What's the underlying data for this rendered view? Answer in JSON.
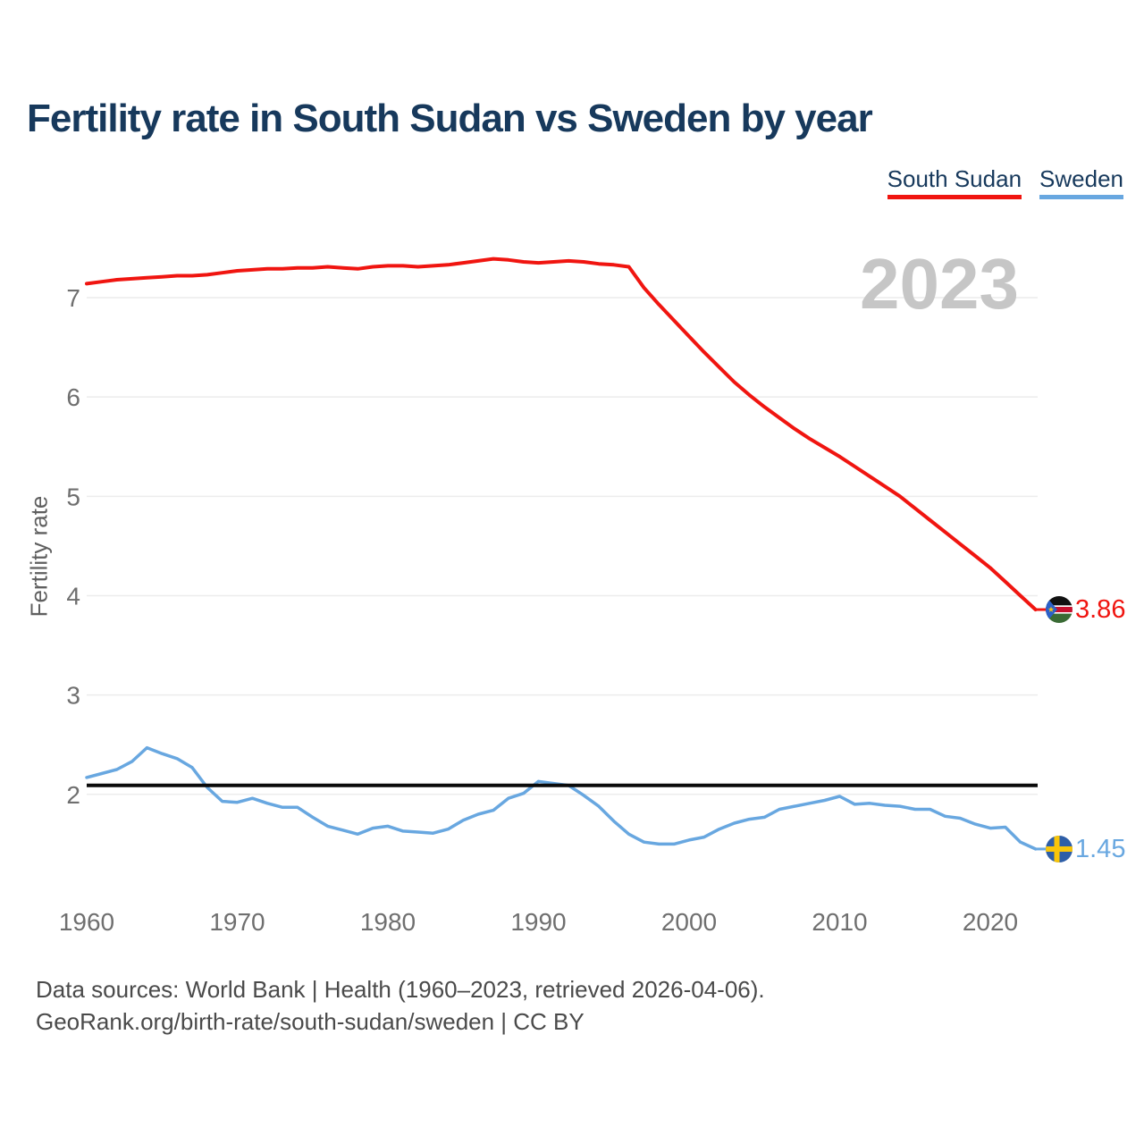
{
  "header": {
    "title": "Fertility rate in South Sudan vs Sweden by year"
  },
  "legend": {
    "items": [
      {
        "label": "South Sudan",
        "color": "#f01510"
      },
      {
        "label": "Sweden",
        "color": "#68a7e0"
      }
    ]
  },
  "chart": {
    "watermark": "2023",
    "y_axis_label": "Fertility rate"
  },
  "footer": {
    "line1": "Data sources: World Bank | Health (1960–2023, retrieved 2026-04-06).",
    "line2": "GeoRank.org/birth-rate/south-sudan/sweden | CC BY"
  },
  "chart_data": {
    "type": "line",
    "title": "Fertility rate in South Sudan vs Sweden by year",
    "xlabel": "",
    "ylabel": "Fertility rate",
    "grid": "horizontal",
    "legend_position": "top-right",
    "xlim": [
      1960,
      2023
    ],
    "ylim": [
      1.2,
      7.6
    ],
    "xticks": [
      1960,
      1970,
      1980,
      1990,
      2000,
      2010,
      2020
    ],
    "yticks": [
      2,
      3,
      4,
      5,
      6,
      7
    ],
    "reference_line": 2.09,
    "x": [
      1960,
      1961,
      1962,
      1963,
      1964,
      1965,
      1966,
      1967,
      1968,
      1969,
      1970,
      1971,
      1972,
      1973,
      1974,
      1975,
      1976,
      1977,
      1978,
      1979,
      1980,
      1981,
      1982,
      1983,
      1984,
      1985,
      1986,
      1987,
      1988,
      1989,
      1990,
      1991,
      1992,
      1993,
      1994,
      1995,
      1996,
      1997,
      1998,
      1999,
      2000,
      2001,
      2002,
      2003,
      2004,
      2005,
      2006,
      2007,
      2008,
      2009,
      2010,
      2011,
      2012,
      2013,
      2014,
      2015,
      2016,
      2017,
      2018,
      2019,
      2020,
      2021,
      2022,
      2023
    ],
    "series": [
      {
        "name": "South Sudan",
        "color": "#f01510",
        "end_label": "3.86",
        "values": [
          7.14,
          7.16,
          7.18,
          7.19,
          7.2,
          7.21,
          7.22,
          7.22,
          7.23,
          7.25,
          7.27,
          7.28,
          7.29,
          7.29,
          7.3,
          7.3,
          7.31,
          7.3,
          7.29,
          7.31,
          7.32,
          7.32,
          7.31,
          7.32,
          7.33,
          7.35,
          7.37,
          7.39,
          7.38,
          7.36,
          7.35,
          7.36,
          7.37,
          7.36,
          7.34,
          7.33,
          7.31,
          7.1,
          6.93,
          6.77,
          6.61,
          6.45,
          6.3,
          6.15,
          6.02,
          5.9,
          5.79,
          5.68,
          5.58,
          5.49,
          5.4,
          5.3,
          5.2,
          5.1,
          5.0,
          4.88,
          4.76,
          4.64,
          4.52,
          4.4,
          4.28,
          4.14,
          4.0,
          3.86
        ]
      },
      {
        "name": "Sweden",
        "color": "#68a7e0",
        "end_label": "1.45",
        "values": [
          2.17,
          2.21,
          2.25,
          2.33,
          2.47,
          2.41,
          2.36,
          2.27,
          2.07,
          1.93,
          1.92,
          1.96,
          1.91,
          1.87,
          1.87,
          1.77,
          1.68,
          1.64,
          1.6,
          1.66,
          1.68,
          1.63,
          1.62,
          1.61,
          1.65,
          1.74,
          1.8,
          1.84,
          1.96,
          2.01,
          2.13,
          2.11,
          2.09,
          1.99,
          1.88,
          1.73,
          1.6,
          1.52,
          1.5,
          1.5,
          1.54,
          1.57,
          1.65,
          1.71,
          1.75,
          1.77,
          1.85,
          1.88,
          1.91,
          1.94,
          1.98,
          1.9,
          1.91,
          1.89,
          1.88,
          1.85,
          1.85,
          1.78,
          1.76,
          1.7,
          1.66,
          1.67,
          1.52,
          1.45
        ]
      }
    ]
  }
}
